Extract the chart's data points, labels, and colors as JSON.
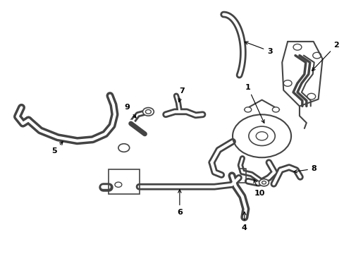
{
  "background_color": "#ffffff",
  "line_color": "#444444",
  "figsize": [
    4.89,
    3.6
  ],
  "dpi": 100
}
